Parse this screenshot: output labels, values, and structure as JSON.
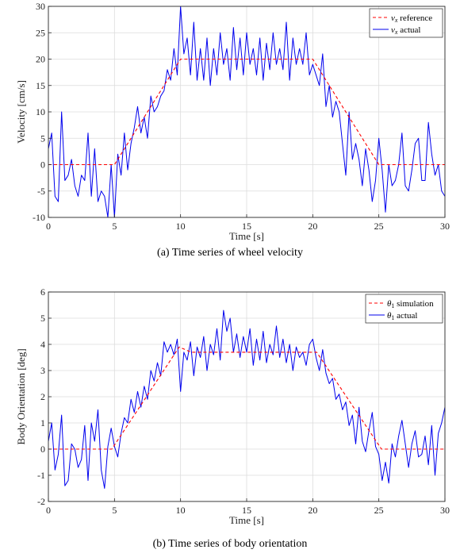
{
  "chart_data": [
    {
      "type": "line",
      "caption": "(a) Time series of wheel velocity",
      "xlabel": "Time [s]",
      "ylabel": "Velocity [cm/s]",
      "xlim": [
        0,
        30
      ],
      "ylim": [
        -10,
        30
      ],
      "xticks": [
        0,
        5,
        10,
        15,
        20,
        25,
        30
      ],
      "yticks": [
        -10,
        -5,
        0,
        5,
        10,
        15,
        20,
        25,
        30
      ],
      "grid": true,
      "legend_position": "top-right",
      "series": [
        {
          "name": "v_x reference",
          "legend_main": "v",
          "legend_sub": "x",
          "legend_rest": " reference",
          "color": "#ff0000",
          "dash": true,
          "x": [
            0,
            5,
            10,
            20,
            25,
            30
          ],
          "y": [
            0,
            0,
            20,
            20,
            0,
            0
          ]
        },
        {
          "name": "v_x actual",
          "legend_main": "v",
          "legend_sub": "x",
          "legend_rest": " actual",
          "color": "#0000ee",
          "dash": false,
          "x": [
            0,
            0.25,
            0.5,
            0.75,
            1,
            1.25,
            1.5,
            1.75,
            2,
            2.25,
            2.5,
            2.75,
            3,
            3.25,
            3.5,
            3.75,
            4,
            4.25,
            4.5,
            4.75,
            5,
            5.25,
            5.5,
            5.75,
            6,
            6.25,
            6.5,
            6.75,
            7,
            7.25,
            7.5,
            7.75,
            8,
            8.25,
            8.5,
            8.75,
            9,
            9.25,
            9.5,
            9.75,
            10,
            10.25,
            10.5,
            10.75,
            11,
            11.25,
            11.5,
            11.75,
            12,
            12.25,
            12.5,
            12.75,
            13,
            13.25,
            13.5,
            13.75,
            14,
            14.25,
            14.5,
            14.75,
            15,
            15.25,
            15.5,
            15.75,
            16,
            16.25,
            16.5,
            16.75,
            17,
            17.25,
            17.5,
            17.75,
            18,
            18.25,
            18.5,
            18.75,
            19,
            19.25,
            19.5,
            19.75,
            20,
            20.25,
            20.5,
            20.75,
            21,
            21.25,
            21.5,
            21.75,
            22,
            22.25,
            22.5,
            22.75,
            23,
            23.25,
            23.5,
            23.75,
            24,
            24.25,
            24.5,
            24.75,
            25,
            25.25,
            25.5,
            25.75,
            26,
            26.25,
            26.5,
            26.75,
            27,
            27.25,
            27.5,
            27.75,
            28,
            28.25,
            28.5,
            28.75,
            29,
            29.25,
            29.5,
            29.75,
            30
          ],
          "y": [
            3,
            6,
            -6,
            -7,
            10,
            -3,
            -2,
            1,
            -4,
            -6,
            -2,
            -3,
            6,
            -6,
            3,
            -7,
            -5,
            -6,
            -10,
            0,
            -10,
            2,
            -2,
            6,
            -1,
            4,
            7,
            11,
            6,
            9,
            5,
            13,
            10,
            11,
            13,
            14,
            18,
            16,
            22,
            17,
            30,
            21,
            24,
            17,
            27,
            16,
            22,
            16,
            24,
            15,
            22,
            17,
            25,
            19,
            22,
            16,
            26,
            18,
            24,
            17,
            25,
            19,
            22,
            17,
            24,
            16,
            23,
            18,
            25,
            19,
            22,
            18,
            27,
            16,
            24,
            19,
            22,
            19,
            25,
            17,
            19,
            17,
            15,
            21,
            11,
            15,
            9,
            12,
            10,
            4,
            -2,
            10,
            1,
            4,
            1,
            -4,
            3,
            -1,
            -7,
            -3,
            5,
            -1,
            -9,
            0,
            -4,
            -3,
            0,
            6,
            -4,
            -5,
            -1,
            4,
            5,
            -3,
            -3,
            8,
            2,
            -2,
            0,
            -5,
            -6
          ]
        }
      ]
    },
    {
      "type": "line",
      "caption": "(b) Time series of body orientation",
      "xlabel": "Time [s]",
      "ylabel": "Body Orientation [deg]",
      "xlim": [
        0,
        30
      ],
      "ylim": [
        -2,
        6
      ],
      "xticks": [
        0,
        5,
        10,
        15,
        20,
        25,
        30
      ],
      "yticks": [
        -2,
        -1,
        0,
        1,
        2,
        3,
        4,
        5,
        6
      ],
      "grid": true,
      "legend_position": "top-right",
      "series": [
        {
          "name": "θ1 simulation",
          "legend_main": "θ",
          "legend_sub": "1",
          "legend_rest": " simulation",
          "color": "#ff0000",
          "dash": true,
          "x": [
            0,
            4.8,
            9.9,
            10.8,
            20.3,
            25.2,
            30
          ],
          "y": [
            0,
            0,
            3.9,
            3.7,
            3.7,
            0,
            0
          ]
        },
        {
          "name": "θ1 actual",
          "legend_main": "θ",
          "legend_sub": "1",
          "legend_rest": " actual",
          "color": "#0000ee",
          "dash": false,
          "x": [
            0,
            0.25,
            0.5,
            0.75,
            1,
            1.25,
            1.5,
            1.75,
            2,
            2.25,
            2.5,
            2.75,
            3,
            3.25,
            3.5,
            3.75,
            4,
            4.25,
            4.5,
            4.75,
            5,
            5.25,
            5.5,
            5.75,
            6,
            6.25,
            6.5,
            6.75,
            7,
            7.25,
            7.5,
            7.75,
            8,
            8.25,
            8.5,
            8.75,
            9,
            9.25,
            9.5,
            9.75,
            10,
            10.25,
            10.5,
            10.75,
            11,
            11.25,
            11.5,
            11.75,
            12,
            12.25,
            12.5,
            12.75,
            13,
            13.25,
            13.5,
            13.75,
            14,
            14.25,
            14.5,
            14.75,
            15,
            15.25,
            15.5,
            15.75,
            16,
            16.25,
            16.5,
            16.75,
            17,
            17.25,
            17.5,
            17.75,
            18,
            18.25,
            18.5,
            18.75,
            19,
            19.25,
            19.5,
            19.75,
            20,
            20.25,
            20.5,
            20.75,
            21,
            21.25,
            21.5,
            21.75,
            22,
            22.25,
            22.5,
            22.75,
            23,
            23.25,
            23.5,
            23.75,
            24,
            24.25,
            24.5,
            24.75,
            25,
            25.25,
            25.5,
            25.75,
            26,
            26.25,
            26.5,
            26.75,
            27,
            27.25,
            27.5,
            27.75,
            28,
            28.25,
            28.5,
            28.75,
            29,
            29.25,
            29.5,
            29.75,
            30
          ],
          "y": [
            0.3,
            1.0,
            -0.8,
            -0.2,
            1.3,
            -1.4,
            -1.2,
            0.2,
            0.0,
            -0.7,
            -0.4,
            0.9,
            -1.2,
            1.0,
            0.3,
            1.5,
            -0.8,
            -1.5,
            0.1,
            0.8,
            0.1,
            -0.3,
            0.6,
            1.2,
            1.0,
            1.9,
            1.4,
            2.2,
            1.6,
            2.4,
            1.9,
            3.0,
            2.6,
            3.3,
            2.8,
            4.1,
            3.7,
            4.0,
            3.6,
            4.2,
            2.2,
            3.7,
            3.4,
            4.1,
            2.8,
            3.9,
            3.5,
            4.3,
            3.0,
            4.0,
            3.6,
            4.6,
            3.4,
            5.3,
            4.5,
            5.0,
            3.7,
            4.4,
            3.5,
            4.3,
            3.7,
            4.6,
            3.2,
            4.2,
            3.4,
            4.5,
            3.3,
            4.0,
            3.6,
            4.7,
            3.5,
            4.2,
            3.3,
            4.0,
            3.0,
            3.9,
            3.5,
            3.7,
            3.2,
            4.0,
            4.2,
            3.5,
            3.0,
            3.8,
            2.9,
            2.5,
            2.7,
            1.9,
            2.1,
            1.5,
            1.8,
            0.9,
            1.3,
            0.2,
            1.6,
            0.3,
            -0.1,
            0.7,
            1.4,
            0.1,
            -0.2,
            -1.2,
            -0.5,
            -1.3,
            0.2,
            -0.3,
            0.5,
            1.1,
            0.2,
            -0.7,
            0.2,
            0.7,
            -0.3,
            -0.2,
            0.5,
            -0.6,
            0.9,
            -1.0,
            0.6,
            1.0,
            1.6
          ]
        }
      ]
    }
  ]
}
